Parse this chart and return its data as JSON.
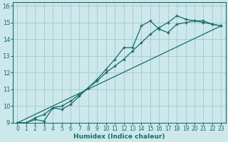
{
  "xlabel": "Humidex (Indice chaleur)",
  "bg_color": "#cce8ea",
  "grid_color": "#aacdd0",
  "line_color": "#1a6b6b",
  "xlim": [
    -0.5,
    23.5
  ],
  "ylim": [
    9,
    16.2
  ],
  "xticks": [
    0,
    1,
    2,
    3,
    4,
    5,
    6,
    7,
    8,
    9,
    10,
    11,
    12,
    13,
    14,
    15,
    16,
    17,
    18,
    19,
    20,
    21,
    22,
    23
  ],
  "yticks": [
    9,
    10,
    11,
    12,
    13,
    14,
    15,
    16
  ],
  "series": [
    {
      "x": [
        0,
        1,
        2,
        3,
        4,
        5,
        6,
        7,
        8,
        9,
        10,
        11,
        12,
        13,
        14,
        15,
        16,
        17,
        18,
        19,
        20,
        21,
        22,
        23
      ],
      "y": [
        9.0,
        9.0,
        9.2,
        9.1,
        9.9,
        9.8,
        10.1,
        10.6,
        11.1,
        11.6,
        12.2,
        12.8,
        13.5,
        13.5,
        14.8,
        15.1,
        14.6,
        14.4,
        14.9,
        15.0,
        15.1,
        15.0,
        14.9,
        14.8
      ],
      "marker": true
    },
    {
      "x": [
        0,
        1,
        2,
        3,
        4,
        5,
        6,
        7,
        8,
        9,
        10,
        11,
        12,
        13,
        14,
        15,
        16,
        17,
        18,
        19,
        20,
        21,
        22,
        23
      ],
      "y": [
        9.0,
        9.0,
        9.3,
        9.5,
        9.9,
        10.0,
        10.3,
        10.7,
        11.1,
        11.5,
        12.0,
        12.4,
        12.8,
        13.3,
        13.8,
        14.3,
        14.7,
        15.0,
        15.4,
        15.2,
        15.1,
        15.1,
        14.9,
        14.8
      ],
      "marker": true
    },
    {
      "x": [
        0,
        23
      ],
      "y": [
        9.0,
        14.8
      ],
      "marker": false
    }
  ]
}
